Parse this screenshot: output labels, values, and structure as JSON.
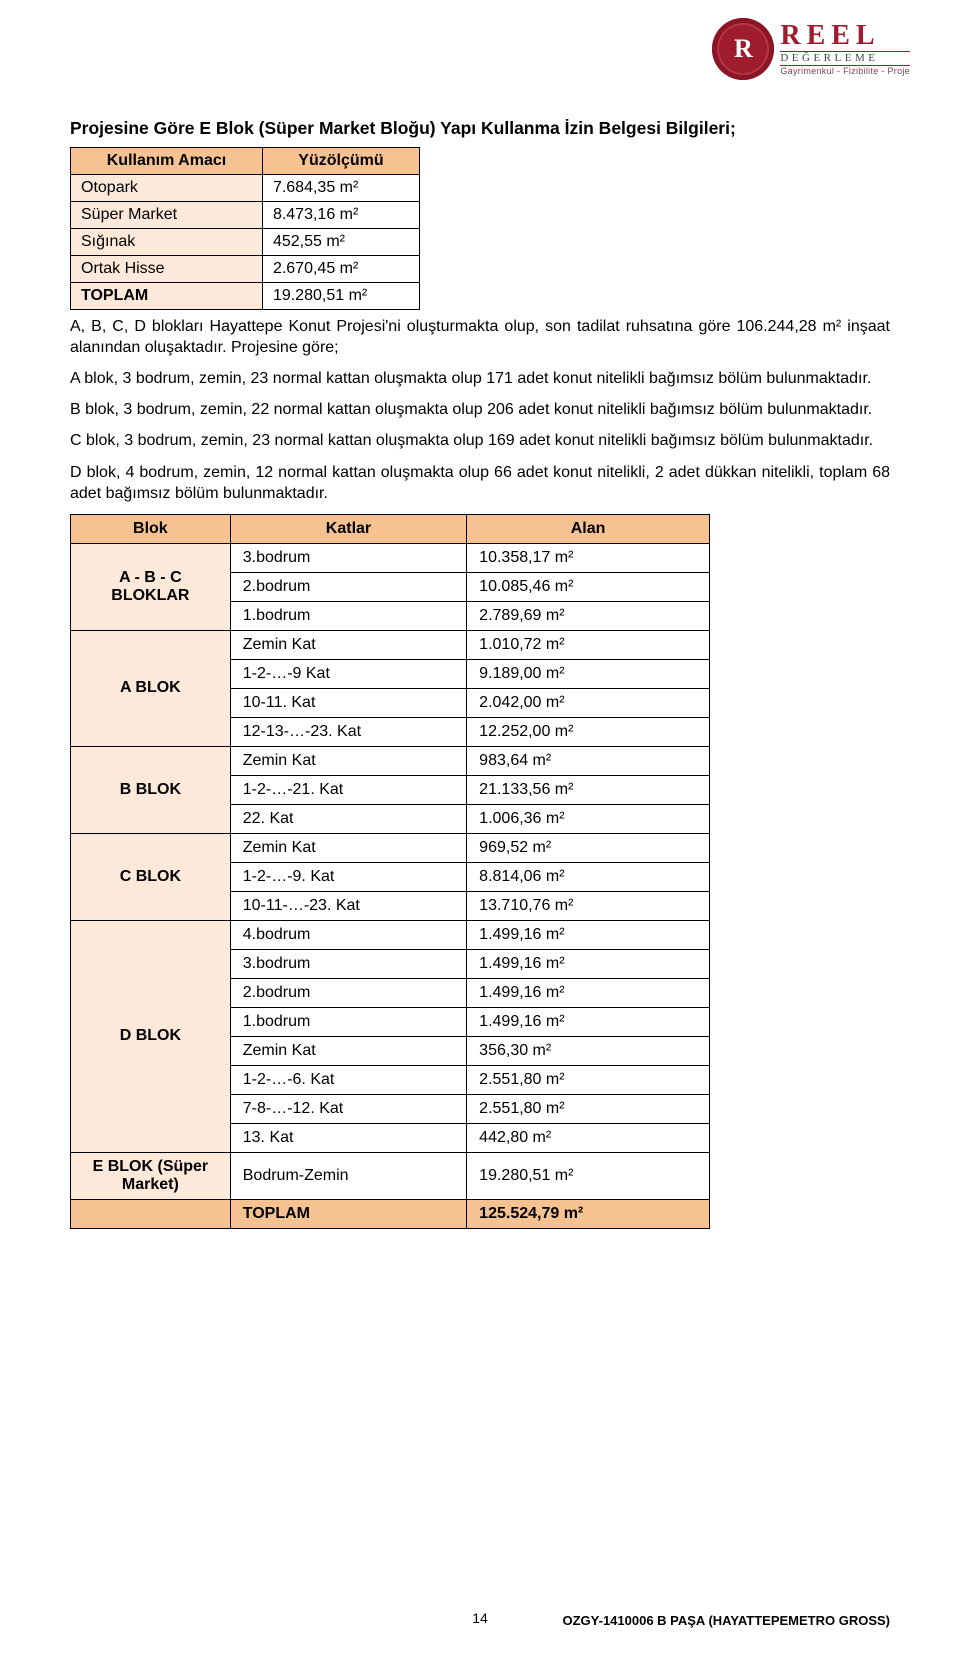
{
  "logo": {
    "initial": "R",
    "main": "REEL",
    "sub1": "DEĞERLEME",
    "sub2": "Gayrimenkul - Fizibilite - Proje"
  },
  "title": "Projesine Göre E Blok (Süper Market Bloğu) Yapı Kullanma İzin Belgesi Bilgileri;",
  "table1": {
    "headers": [
      "Kullanım Amacı",
      "Yüzölçümü"
    ],
    "rows": [
      [
        "Otopark",
        "7.684,35 m²"
      ],
      [
        "Süper Market",
        "8.473,16 m²"
      ],
      [
        "Sığınak",
        "452,55 m²"
      ],
      [
        "Ortak Hisse",
        "2.670,45 m²"
      ],
      [
        "TOPLAM",
        "19.280,51 m²"
      ]
    ]
  },
  "para1": "A, B, C, D blokları Hayattepe Konut Projesi'ni oluşturmakta olup, son tadilat ruhsatına göre 106.244,28 m² inşaat alanından oluşaktadır. Projesine göre;",
  "para2": "A blok, 3 bodrum, zemin, 23 normal kattan oluşmakta olup 171 adet konut nitelikli bağımsız bölüm bulunmaktadır.",
  "para3": "B blok, 3 bodrum, zemin, 22 normal kattan oluşmakta olup 206 adet konut nitelikli bağımsız bölüm bulunmaktadır.",
  "para4": "C blok, 3 bodrum, zemin, 23 normal kattan oluşmakta olup 169 adet konut nitelikli bağımsız bölüm bulunmaktadır.",
  "para5": "D blok, 4 bodrum, zemin, 12 normal kattan oluşmakta olup 66 adet konut nitelikli, 2 adet dükkan nitelikli, toplam 68 adet bağımsız bölüm bulunmaktadır.",
  "table2": {
    "headers": [
      "Blok",
      "Katlar",
      "Alan"
    ],
    "groups": [
      {
        "block": "A - B - C BLOKLAR",
        "rows": [
          [
            "3.bodrum",
            "10.358,17 m²"
          ],
          [
            "2.bodrum",
            "10.085,46 m²"
          ],
          [
            "1.bodrum",
            "2.789,69 m²"
          ]
        ]
      },
      {
        "block": "A BLOK",
        "rows": [
          [
            "Zemin Kat",
            "1.010,72 m²"
          ],
          [
            "1-2-…-9 Kat",
            "9.189,00 m²"
          ],
          [
            "10-11. Kat",
            "2.042,00 m²"
          ],
          [
            "12-13-…-23. Kat",
            "12.252,00 m²"
          ]
        ]
      },
      {
        "block": "B BLOK",
        "rows": [
          [
            "Zemin Kat",
            "983,64 m²"
          ],
          [
            "1-2-…-21. Kat",
            "21.133,56 m²"
          ],
          [
            "22. Kat",
            "1.006,36 m²"
          ]
        ]
      },
      {
        "block": "C BLOK",
        "rows": [
          [
            "Zemin Kat",
            "969,52 m²"
          ],
          [
            "1-2-…-9. Kat",
            "8.814,06 m²"
          ],
          [
            "10-11-…-23. Kat",
            "13.710,76 m²"
          ]
        ]
      },
      {
        "block": "D BLOK",
        "rows": [
          [
            "4.bodrum",
            "1.499,16 m²"
          ],
          [
            "3.bodrum",
            "1.499,16 m²"
          ],
          [
            "2.bodrum",
            "1.499,16 m²"
          ],
          [
            "1.bodrum",
            "1.499,16 m²"
          ],
          [
            "Zemin Kat",
            "356,30 m²"
          ],
          [
            "1-2-…-6. Kat",
            "2.551,80 m²"
          ],
          [
            "7-8-…-12. Kat",
            "2.551,80 m²"
          ],
          [
            "13. Kat",
            "442,80 m²"
          ]
        ]
      },
      {
        "block": "E BLOK (Süper Market)",
        "rows": [
          [
            "Bodrum-Zemin",
            "19.280,51 m²"
          ]
        ]
      }
    ],
    "total": {
      "label": "TOPLAM",
      "value": "125.524,79 m²"
    }
  },
  "footer": {
    "page": "14",
    "docid": "OZGY-1410006 B PAŞA (HAYATTEPEMETRO GROSS)"
  }
}
